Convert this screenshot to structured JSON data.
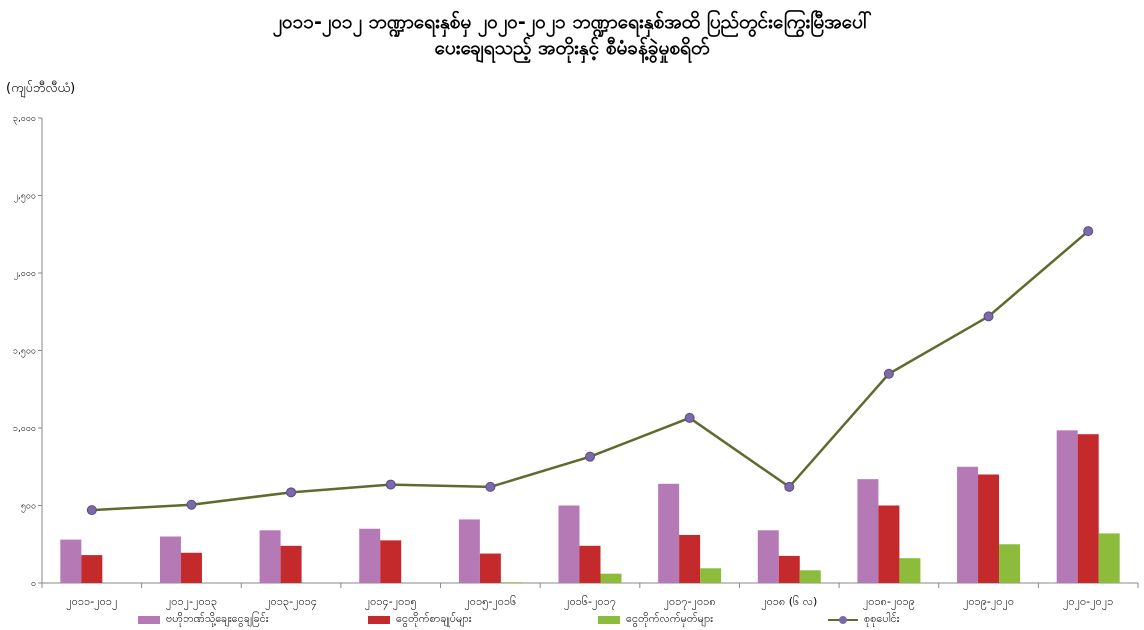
{
  "chart_data": {
    "type": "bar",
    "title_line1": "၂၀၁၁-၂၀၁၂ ဘဏ္ဍာရေးနှစ်မှ ၂၀၂၀-၂၀၂၁ ဘဏ္ဍာရေးနှစ်အထိ ပြည်တွင်းကြွေးမြီအပေါ်",
    "title_line2": "ပေးချေရသည့် အတိုးနှင့် စီမံခန့်ခွဲမှုစရိတ်",
    "unit_label": "(ကျပ်ဘီလီယံ)",
    "ylim": [
      0,
      3000
    ],
    "yticks": [
      "၀",
      "၅၀၀",
      "၁,၀၀၀",
      "၁,၅၀၀",
      "၂,၀၀၀",
      "၂,၅၀၀",
      "၃,၀၀၀"
    ],
    "categories": [
      "၂၀၁၁-၂၀၁၂",
      "၂၀၁၂-၂၀၁၃",
      "၂၀၁၃-၂၀၁၄",
      "၂၀၁၄-၂၀၁၅",
      "၂၀၁၅-၂၀၁၆",
      "၂၀၁၆-၂၀၁၇",
      "၂၀၁၇-၂၀၁၈",
      "၂၀၁၈ (၆ လ)",
      "၂၀၁၈-၂၀၁၉",
      "၂၀၁၉-၂၀၂၀",
      "၂၀၂၀-၂၀၂၁"
    ],
    "series": [
      {
        "name": "ဗဟိုဘဏ်သို့ချေးငွေချခြင်း",
        "kind": "bar",
        "color": "#b57ab6",
        "values": [
          280,
          300,
          340,
          350,
          410,
          500,
          640,
          340,
          670,
          750,
          985
        ]
      },
      {
        "name": "ငွေတိုက်စာချုပ်များ",
        "kind": "bar",
        "color": "#c4292b",
        "values": [
          180,
          195,
          240,
          275,
          190,
          240,
          310,
          175,
          500,
          700,
          960
        ]
      },
      {
        "name": "ငွေတိုက်လက်မှတ်များ",
        "kind": "bar",
        "color": "#8dbb3c",
        "values": [
          0,
          0,
          0,
          0,
          5,
          60,
          95,
          82,
          160,
          250,
          320
        ]
      },
      {
        "name": "စုစုပေါင်း",
        "kind": "line",
        "color": "#5d6b2c",
        "values": [
          470,
          505,
          585,
          635,
          620,
          815,
          1065,
          620,
          1350,
          1720,
          2270
        ]
      }
    ],
    "grid": false,
    "legend_position": "bottom"
  }
}
